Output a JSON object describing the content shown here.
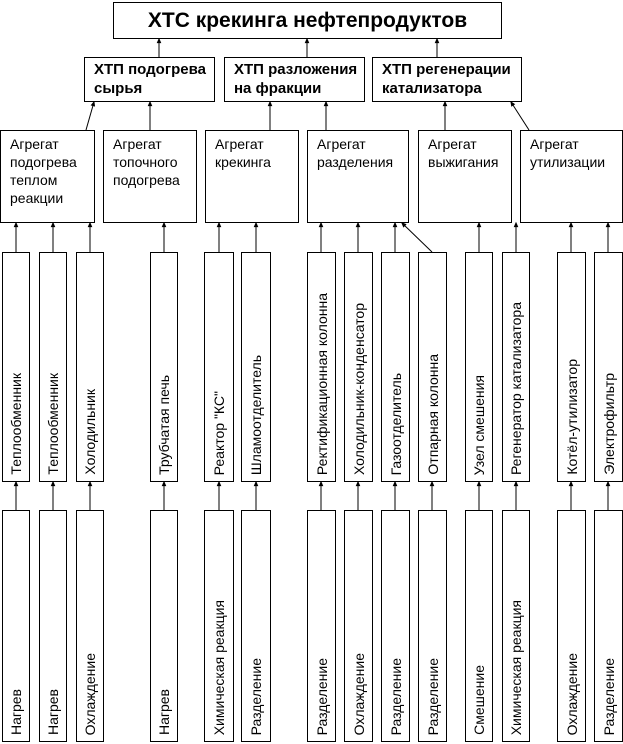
{
  "title": "ХТС крекинга нефтепродуктов",
  "processes": [
    {
      "label": "ХТП подогрева сырья"
    },
    {
      "label": "ХТП разложения на фракции"
    },
    {
      "label": "ХТП регенерации катализатора"
    }
  ],
  "aggregates": [
    {
      "label": "Агрегат подогрева теплом реакции"
    },
    {
      "label": "Агрегат топочного подогрева"
    },
    {
      "label": "Агрегат крекинга"
    },
    {
      "label": "Агрегат разделения"
    },
    {
      "label": "Агрегат выжигания"
    },
    {
      "label": "Агрегат утилизации"
    }
  ],
  "apparatus": [
    "Теплообменник",
    "Теплообменник",
    "Холодильник",
    "Трубчатая печь",
    "Реактор \"КС\"",
    "Шламоотделитель",
    "Ректификационная колонна",
    "Холодильник-конденсатор",
    "Газоотделитель",
    "Отпарная колонна",
    "Узел смешения",
    "Регенератор катализатора",
    "Котёл-утилизатор",
    "Электрофильтр"
  ],
  "operations": [
    "Нагрев",
    "Нагрев",
    "Охлаждение",
    "Нагрев",
    "Химическая реакция",
    "Разделение",
    "Разделение",
    "Охлаждение",
    "Разделение",
    "Разделение",
    "Смешение",
    "Химическая реакция",
    "Охлаждение",
    "Разделение"
  ]
}
